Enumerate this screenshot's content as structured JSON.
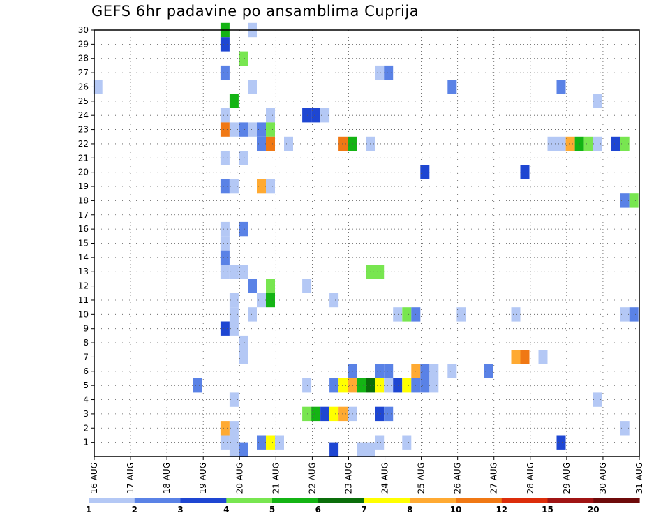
{
  "title": "GEFS 6hr padavine po ansamblima Cuprija",
  "chart_data": {
    "type": "heatmap",
    "title": "GEFS 6hr padavine po ansamblima Cuprija",
    "xlabel": "",
    "ylabel": "",
    "x_ticks": [
      "16 AUG",
      "17 AUG",
      "18 AUG",
      "19 AUG",
      "20 AUG",
      "21 AUG",
      "22 AUG",
      "23 AUG",
      "24 AUG",
      "25 AUG",
      "26 AUG",
      "27 AUG",
      "28 AUG",
      "29 AUG",
      "30 AUG",
      "31 AUG"
    ],
    "y_ticks": [
      1,
      2,
      3,
      4,
      5,
      6,
      7,
      8,
      9,
      10,
      11,
      12,
      13,
      14,
      15,
      16,
      17,
      18,
      19,
      20,
      21,
      22,
      23,
      24,
      25,
      26,
      27,
      28,
      29,
      30
    ],
    "xlim": [
      0,
      15
    ],
    "ylim": [
      0,
      30
    ],
    "grid": true,
    "legend": {
      "placement": "bottom",
      "labels": [
        "1",
        "2",
        "3",
        "4",
        "5",
        "6",
        "7",
        "8",
        "10",
        "12",
        "15",
        "20"
      ],
      "colors": [
        "#b4c8f5",
        "#5a82e6",
        "#1e46d2",
        "#78e650",
        "#14b414",
        "#0a6e0a",
        "#ffff00",
        "#ffaa32",
        "#f07814",
        "#dc2d0a",
        "#a01414",
        "#6e0a0a"
      ]
    },
    "levels": [
      1,
      2,
      3,
      4,
      5,
      6,
      7,
      8,
      10,
      12,
      15,
      20
    ],
    "cells": [
      {
        "x": 3.6,
        "y": 30,
        "v": 5
      },
      {
        "x": 3.6,
        "y": 29,
        "v": 3
      },
      {
        "x": 4.35,
        "y": 30,
        "v": 1
      },
      {
        "x": 4.1,
        "y": 28,
        "v": 4
      },
      {
        "x": 3.6,
        "y": 27,
        "v": 2
      },
      {
        "x": 7.85,
        "y": 27,
        "v": 1
      },
      {
        "x": 8.1,
        "y": 27,
        "v": 2
      },
      {
        "x": 0.1,
        "y": 26,
        "v": 1
      },
      {
        "x": 4.35,
        "y": 26,
        "v": 1
      },
      {
        "x": 9.85,
        "y": 26,
        "v": 2
      },
      {
        "x": 12.85,
        "y": 26,
        "v": 2
      },
      {
        "x": 3.85,
        "y": 25,
        "v": 5
      },
      {
        "x": 13.85,
        "y": 25,
        "v": 1
      },
      {
        "x": 3.6,
        "y": 24,
        "v": 1
      },
      {
        "x": 4.85,
        "y": 24,
        "v": 1
      },
      {
        "x": 5.85,
        "y": 24,
        "v": 3
      },
      {
        "x": 6.1,
        "y": 24,
        "v": 3
      },
      {
        "x": 6.35,
        "y": 24,
        "v": 1
      },
      {
        "x": 3.6,
        "y": 23,
        "v": 10
      },
      {
        "x": 3.85,
        "y": 23,
        "v": 1
      },
      {
        "x": 4.1,
        "y": 23,
        "v": 2
      },
      {
        "x": 4.35,
        "y": 23,
        "v": 1
      },
      {
        "x": 4.6,
        "y": 23,
        "v": 2
      },
      {
        "x": 4.85,
        "y": 23,
        "v": 4
      },
      {
        "x": 4.6,
        "y": 22,
        "v": 2
      },
      {
        "x": 4.85,
        "y": 22,
        "v": 10
      },
      {
        "x": 5.35,
        "y": 22,
        "v": 1
      },
      {
        "x": 6.85,
        "y": 22,
        "v": 10
      },
      {
        "x": 7.1,
        "y": 22,
        "v": 5
      },
      {
        "x": 7.6,
        "y": 22,
        "v": 1
      },
      {
        "x": 12.6,
        "y": 22,
        "v": 1
      },
      {
        "x": 12.85,
        "y": 22,
        "v": 1
      },
      {
        "x": 13.1,
        "y": 22,
        "v": 8
      },
      {
        "x": 13.35,
        "y": 22,
        "v": 5
      },
      {
        "x": 13.6,
        "y": 22,
        "v": 4
      },
      {
        "x": 13.85,
        "y": 22,
        "v": 1
      },
      {
        "x": 14.35,
        "y": 22,
        "v": 3
      },
      {
        "x": 14.6,
        "y": 22,
        "v": 4
      },
      {
        "x": 3.6,
        "y": 21,
        "v": 1
      },
      {
        "x": 4.1,
        "y": 21,
        "v": 1
      },
      {
        "x": 9.1,
        "y": 20,
        "v": 3
      },
      {
        "x": 11.85,
        "y": 20,
        "v": 3
      },
      {
        "x": 3.6,
        "y": 19,
        "v": 2
      },
      {
        "x": 3.85,
        "y": 19,
        "v": 1
      },
      {
        "x": 4.6,
        "y": 19,
        "v": 8
      },
      {
        "x": 4.85,
        "y": 19,
        "v": 1
      },
      {
        "x": 14.6,
        "y": 18,
        "v": 2
      },
      {
        "x": 14.85,
        "y": 18,
        "v": 4
      },
      {
        "x": 3.6,
        "y": 16,
        "v": 1
      },
      {
        "x": 4.1,
        "y": 16,
        "v": 2
      },
      {
        "x": 3.6,
        "y": 15,
        "v": 1
      },
      {
        "x": 3.6,
        "y": 14,
        "v": 2
      },
      {
        "x": 3.6,
        "y": 13,
        "v": 1
      },
      {
        "x": 3.85,
        "y": 13,
        "v": 1
      },
      {
        "x": 4.1,
        "y": 13,
        "v": 1
      },
      {
        "x": 7.6,
        "y": 13,
        "v": 4
      },
      {
        "x": 7.85,
        "y": 13,
        "v": 4
      },
      {
        "x": 4.35,
        "y": 12,
        "v": 2
      },
      {
        "x": 4.85,
        "y": 12,
        "v": 4
      },
      {
        "x": 5.85,
        "y": 12,
        "v": 1
      },
      {
        "x": 3.85,
        "y": 11,
        "v": 1
      },
      {
        "x": 4.6,
        "y": 11,
        "v": 1
      },
      {
        "x": 4.85,
        "y": 11,
        "v": 5
      },
      {
        "x": 6.6,
        "y": 11,
        "v": 1
      },
      {
        "x": 3.85,
        "y": 10,
        "v": 1
      },
      {
        "x": 4.35,
        "y": 10,
        "v": 1
      },
      {
        "x": 8.35,
        "y": 10,
        "v": 1
      },
      {
        "x": 8.6,
        "y": 10,
        "v": 4
      },
      {
        "x": 8.85,
        "y": 10,
        "v": 2
      },
      {
        "x": 10.1,
        "y": 10,
        "v": 1
      },
      {
        "x": 11.6,
        "y": 10,
        "v": 1
      },
      {
        "x": 14.6,
        "y": 10,
        "v": 1
      },
      {
        "x": 14.85,
        "y": 10,
        "v": 2
      },
      {
        "x": 3.6,
        "y": 9,
        "v": 3
      },
      {
        "x": 3.85,
        "y": 9,
        "v": 1
      },
      {
        "x": 4.1,
        "y": 8,
        "v": 1
      },
      {
        "x": 4.1,
        "y": 7,
        "v": 1
      },
      {
        "x": 11.6,
        "y": 7,
        "v": 8
      },
      {
        "x": 11.85,
        "y": 7,
        "v": 10
      },
      {
        "x": 12.35,
        "y": 7,
        "v": 1
      },
      {
        "x": 7.1,
        "y": 6,
        "v": 2
      },
      {
        "x": 7.85,
        "y": 6,
        "v": 2
      },
      {
        "x": 8.1,
        "y": 6,
        "v": 2
      },
      {
        "x": 8.85,
        "y": 6,
        "v": 8
      },
      {
        "x": 9.1,
        "y": 6,
        "v": 2
      },
      {
        "x": 9.35,
        "y": 6,
        "v": 1
      },
      {
        "x": 9.85,
        "y": 6,
        "v": 1
      },
      {
        "x": 10.85,
        "y": 6,
        "v": 2
      },
      {
        "x": 2.85,
        "y": 5,
        "v": 2
      },
      {
        "x": 5.85,
        "y": 5,
        "v": 1
      },
      {
        "x": 6.6,
        "y": 5,
        "v": 2
      },
      {
        "x": 6.85,
        "y": 5,
        "v": 7
      },
      {
        "x": 7.1,
        "y": 5,
        "v": 8
      },
      {
        "x": 7.35,
        "y": 5,
        "v": 5
      },
      {
        "x": 7.6,
        "y": 5,
        "v": 6
      },
      {
        "x": 7.85,
        "y": 5,
        "v": 7
      },
      {
        "x": 8.1,
        "y": 5,
        "v": 1
      },
      {
        "x": 8.35,
        "y": 5,
        "v": 3
      },
      {
        "x": 8.6,
        "y": 5,
        "v": 7
      },
      {
        "x": 8.85,
        "y": 5,
        "v": 2
      },
      {
        "x": 9.1,
        "y": 5,
        "v": 2
      },
      {
        "x": 9.35,
        "y": 5,
        "v": 1
      },
      {
        "x": 3.85,
        "y": 4,
        "v": 1
      },
      {
        "x": 13.85,
        "y": 4,
        "v": 1
      },
      {
        "x": 5.85,
        "y": 3,
        "v": 4
      },
      {
        "x": 6.1,
        "y": 3,
        "v": 5
      },
      {
        "x": 6.35,
        "y": 3,
        "v": 3
      },
      {
        "x": 6.6,
        "y": 3,
        "v": 7
      },
      {
        "x": 6.85,
        "y": 3,
        "v": 8
      },
      {
        "x": 7.1,
        "y": 3,
        "v": 1
      },
      {
        "x": 7.85,
        "y": 3,
        "v": 3
      },
      {
        "x": 8.1,
        "y": 3,
        "v": 2
      },
      {
        "x": 3.6,
        "y": 2,
        "v": 8
      },
      {
        "x": 3.85,
        "y": 2,
        "v": 1
      },
      {
        "x": 14.6,
        "y": 2,
        "v": 1
      },
      {
        "x": 3.6,
        "y": 1,
        "v": 1
      },
      {
        "x": 3.85,
        "y": 1,
        "v": 1
      },
      {
        "x": 4.6,
        "y": 1,
        "v": 2
      },
      {
        "x": 4.85,
        "y": 1,
        "v": 7
      },
      {
        "x": 5.1,
        "y": 1,
        "v": 1
      },
      {
        "x": 7.85,
        "y": 1,
        "v": 1
      },
      {
        "x": 8.6,
        "y": 1,
        "v": 1
      },
      {
        "x": 12.85,
        "y": 1,
        "v": 3
      },
      {
        "x": 3.85,
        "y": 0.5,
        "v": 1
      },
      {
        "x": 4.1,
        "y": 0.5,
        "v": 2
      },
      {
        "x": 6.6,
        "y": 0.5,
        "v": 3
      },
      {
        "x": 7.35,
        "y": 0.5,
        "v": 1
      },
      {
        "x": 7.6,
        "y": 0.5,
        "v": 1
      }
    ]
  }
}
